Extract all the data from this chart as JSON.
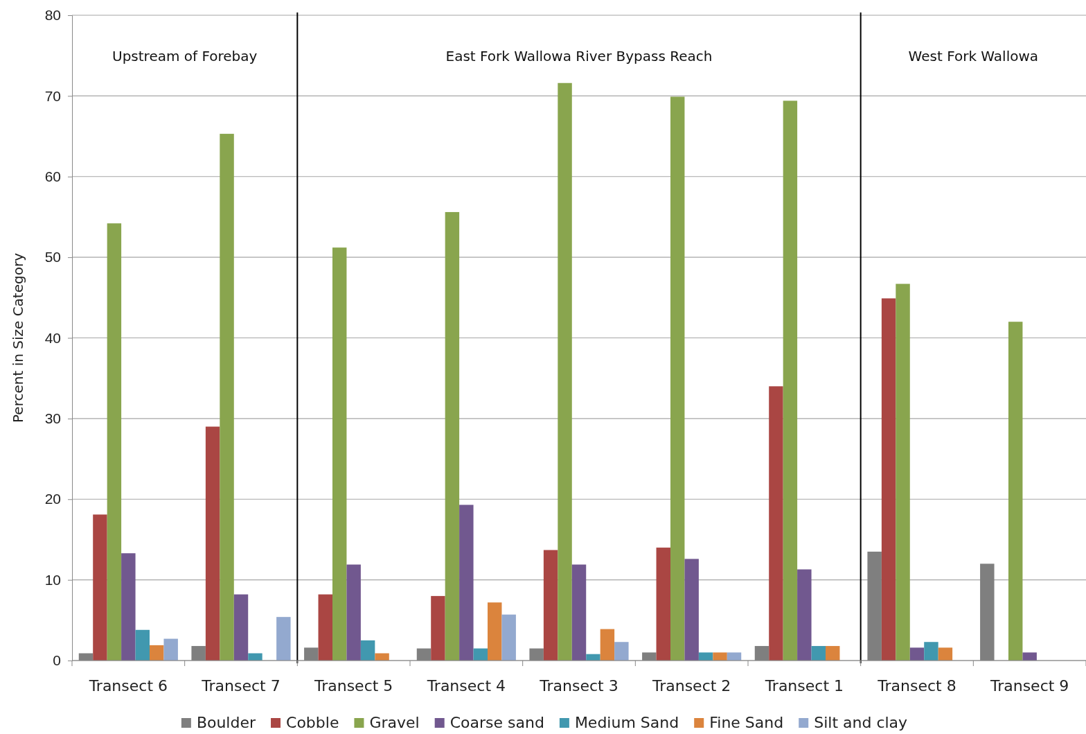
{
  "chart_data": {
    "type": "bar",
    "ylabel": "Percent in Size Category",
    "categories": [
      "Transect 6",
      "Transect 7",
      "Transect 5",
      "Transect 4",
      "Transect 3",
      "Transect 2",
      "Transect 1",
      "Transect 8",
      "Transect 9"
    ],
    "series": [
      {
        "name": "Boulder",
        "color": "#7f7f7f",
        "values": [
          0.9,
          1.8,
          1.6,
          1.5,
          1.5,
          1.0,
          1.8,
          13.5,
          12.0
        ]
      },
      {
        "name": "Cobble",
        "color": "#aa4643",
        "values": [
          18.1,
          29.0,
          8.2,
          8.0,
          13.7,
          14.0,
          34.0,
          44.9,
          0
        ]
      },
      {
        "name": "Gravel",
        "color": "#89a54e",
        "values": [
          54.2,
          65.3,
          51.2,
          55.6,
          71.6,
          69.9,
          69.4,
          46.7,
          42.0
        ]
      },
      {
        "name": "Coarse sand",
        "color": "#71588f",
        "values": [
          13.3,
          8.2,
          11.9,
          19.3,
          11.9,
          12.6,
          11.3,
          1.6,
          1.0
        ]
      },
      {
        "name": "Medium Sand",
        "color": "#4198af",
        "values": [
          3.8,
          0.9,
          2.5,
          1.5,
          0.8,
          1.0,
          1.8,
          2.3,
          0
        ]
      },
      {
        "name": "Fine Sand",
        "color": "#db843d",
        "values": [
          1.9,
          0,
          0.9,
          7.2,
          3.9,
          1.0,
          1.8,
          1.6,
          0
        ]
      },
      {
        "name": "Silt and clay",
        "color": "#93a9cf",
        "values": [
          2.7,
          5.4,
          0,
          5.7,
          2.3,
          1.0,
          0,
          0,
          0
        ]
      }
    ],
    "ylim": [
      0,
      80
    ],
    "yticks": [
      0,
      10,
      20,
      30,
      40,
      50,
      60,
      70,
      80
    ],
    "grid": "y",
    "legend": "bottom",
    "annotations": [
      "Upstream of Forebay",
      "East Fork Wallowa River Bypass Reach",
      "West Fork Wallowa"
    ]
  }
}
